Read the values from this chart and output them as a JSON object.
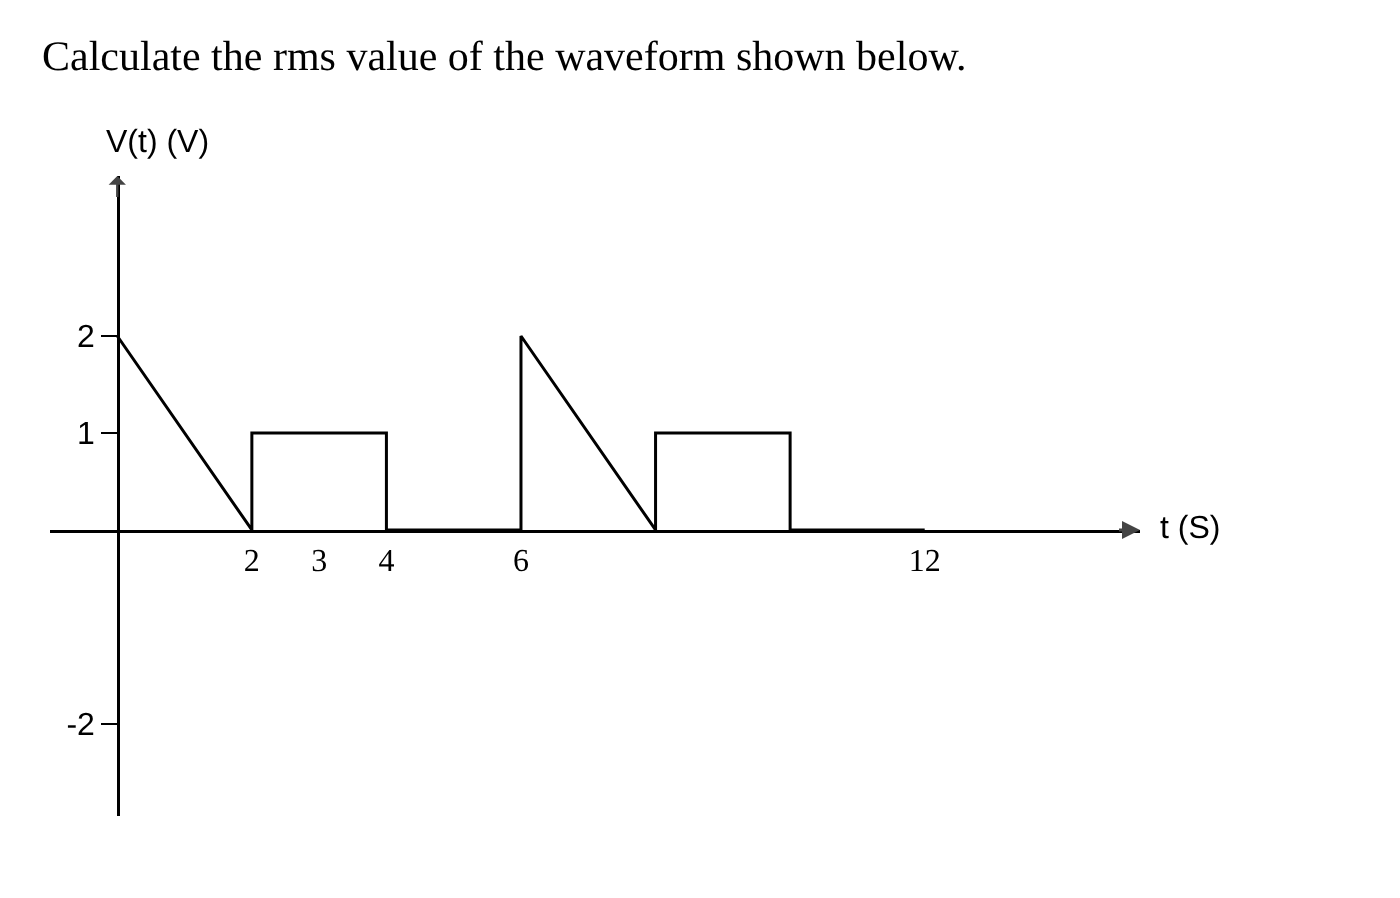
{
  "chart_data": {
    "type": "line",
    "title": "Calculate the rms value of the waveform shown below.",
    "xlabel": "t (S)",
    "ylabel": "V(t) (V)",
    "x": [
      0,
      2,
      2,
      4,
      4,
      6,
      6,
      8,
      8,
      10,
      10,
      12
    ],
    "series": [
      {
        "color": "#000000",
        "values": [
          2,
          0,
          1,
          1,
          0,
          0,
          2,
          0,
          1,
          1,
          0,
          0
        ]
      }
    ],
    "xlim": [
      -1,
      15.2
    ],
    "ylim": [
      -2.95,
      3.65
    ],
    "xticks": [
      2,
      3,
      4,
      6,
      12
    ],
    "yticks": [
      2,
      1,
      -2
    ],
    "marker": "none",
    "line_style": "solid"
  }
}
